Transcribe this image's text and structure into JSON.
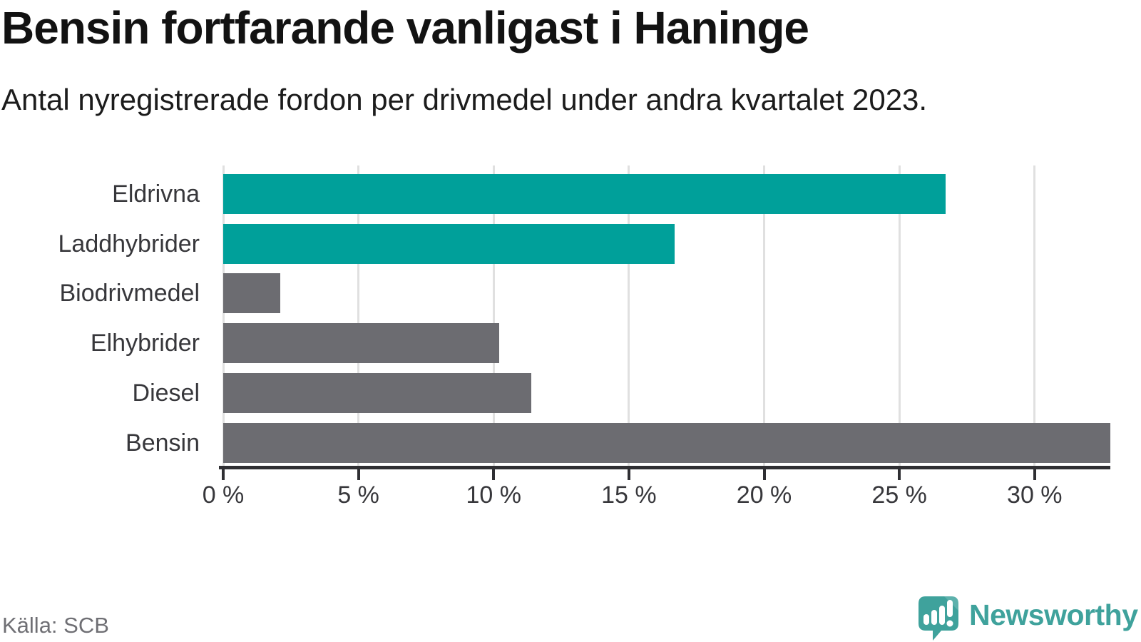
{
  "title": "Bensin fortfarande vanligast i Haninge",
  "subtitle": "Antal nyregistrerade fordon per drivmedel under andra kvartalet 2023.",
  "source": "Källa: SCB",
  "brand": {
    "name": "Newsworthy",
    "logo_icon": "speech-bubble-bar-chart-icon"
  },
  "colors": {
    "highlight_bar": "#00A09A",
    "default_bar": "#6C6C71",
    "gridline": "#E0E0E0",
    "axis": "#2F2F33",
    "label": "#37373B",
    "title": "#121212",
    "subtitle": "#1C1C1C",
    "source": "#6F6F74",
    "brand": "#3FA29C"
  },
  "chart_data": {
    "type": "bar",
    "orientation": "horizontal",
    "title": "Bensin fortfarande vanligast i Haninge",
    "subtitle": "Antal nyregistrerade fordon per drivmedel under andra kvartalet 2023.",
    "categories": [
      "Eldrivna",
      "Laddhybrider",
      "Biodrivmedel",
      "Elhybrider",
      "Diesel",
      "Bensin"
    ],
    "values": [
      26.7,
      16.7,
      2.1,
      10.2,
      11.4,
      32.8
    ],
    "unit": "%",
    "bar_colors": [
      "#00A09A",
      "#00A09A",
      "#6C6C71",
      "#6C6C71",
      "#6C6C71",
      "#6C6C71"
    ],
    "x_ticks": [
      0,
      5,
      10,
      15,
      20,
      25,
      30
    ],
    "x_tick_labels": [
      "0 %",
      "5 %",
      "10 %",
      "15 %",
      "20 %",
      "25 %",
      "30 %"
    ],
    "xlim": [
      0,
      32.8
    ],
    "grid": "vertical-only",
    "legend": "none",
    "source_note": "Källa: SCB"
  }
}
